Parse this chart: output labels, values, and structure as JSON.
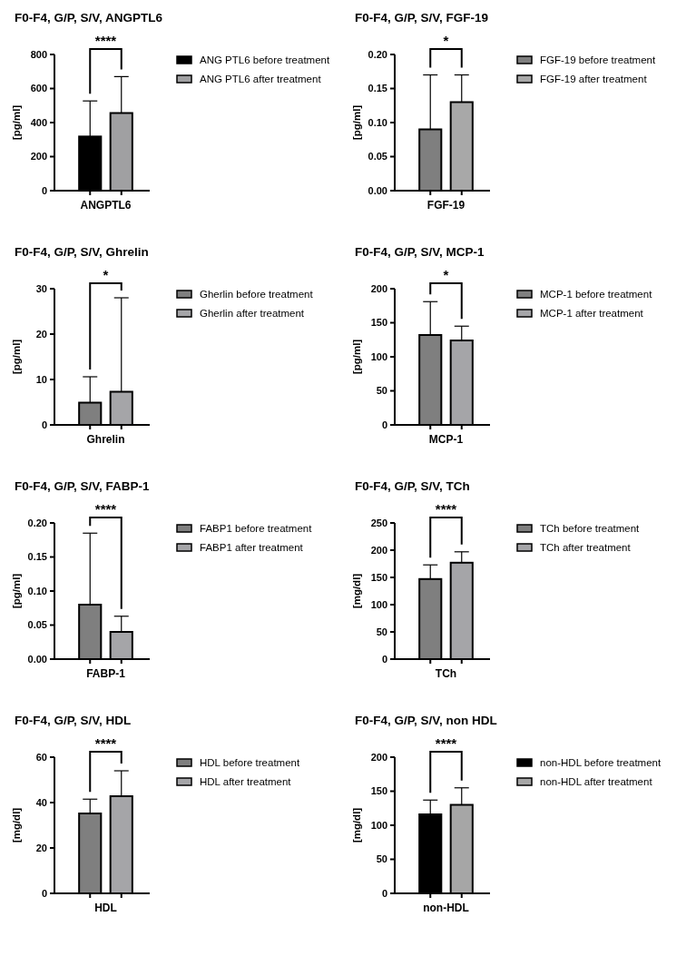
{
  "chart_data": [
    {
      "type": "bar",
      "title": "F0-F4, G/P, S/V,  ANGPTL6",
      "ylabel": "[pg/ml]",
      "categories": [
        "ANGPTL6"
      ],
      "ylim": [
        0,
        800
      ],
      "yticks": [
        0,
        200,
        400,
        600,
        800
      ],
      "legend": "right",
      "annotations": [
        "****"
      ],
      "series": [
        {
          "name": "ANG PTL6 before treatment",
          "color": "#000000",
          "values": [
            318
          ],
          "errors": [
            [
              318,
              527
            ]
          ]
        },
        {
          "name": "ANG PTL6 after treatment",
          "color": "#a0a0a2",
          "values": [
            456
          ],
          "errors": [
            [
              456,
              670
            ]
          ]
        }
      ]
    },
    {
      "type": "bar",
      "title": "F0-F4, G/P, S/V,  FGF-19",
      "ylabel": "[pg/ml]",
      "categories": [
        "FGF-19"
      ],
      "ylim": [
        0,
        0.2
      ],
      "yticks": [
        {
          "value": 0,
          "label": "0.00"
        },
        {
          "value": 0.05,
          "label": "0.05"
        },
        {
          "value": 0.1,
          "label": "0.10"
        },
        {
          "value": 0.15,
          "label": "0.15"
        },
        {
          "value": 0.2,
          "label": "0.20"
        }
      ],
      "legend": "right",
      "annotations": [
        "*"
      ],
      "series": [
        {
          "name": "FGF-19 before treatment",
          "color": "#7f7f7f",
          "values": [
            0.09
          ],
          "errors": [
            [
              0.09,
              0.17
            ]
          ]
        },
        {
          "name": "FGF-19 after treatment",
          "color": "#a8a8a8",
          "values": [
            0.13
          ],
          "errors": [
            [
              0.13,
              0.17
            ]
          ]
        }
      ]
    },
    {
      "type": "bar",
      "title": "F0-F4, G/P, S/V, Ghrelin",
      "ylabel": "[pg/ml]",
      "categories": [
        "Ghrelin"
      ],
      "ylim": [
        0,
        30
      ],
      "yticks": [
        0,
        10,
        20,
        30
      ],
      "legend": "right",
      "annotations": [
        "*"
      ],
      "series": [
        {
          "name": "Gherlin before treatment",
          "color": "#7f7f7f",
          "values": [
            4.9
          ],
          "errors": [
            [
              4.9,
              10.6
            ]
          ]
        },
        {
          "name": "Gherlin after treatment",
          "color": "#a5a5a8",
          "values": [
            7.3
          ],
          "errors": [
            [
              7.3,
              28
            ]
          ]
        }
      ]
    },
    {
      "type": "bar",
      "title": "F0-F4, G/P, S/V, MCP-1",
      "ylabel": "[pg/ml]",
      "categories": [
        "MCP-1"
      ],
      "ylim": [
        0,
        200
      ],
      "yticks": [
        0,
        50,
        100,
        150,
        200
      ],
      "legend": "right",
      "annotations": [
        "*"
      ],
      "series": [
        {
          "name": "MCP-1 before treatment",
          "color": "#7f7f7f",
          "values": [
            132
          ],
          "errors": [
            [
              132,
              181
            ]
          ]
        },
        {
          "name": "MCP-1 after treatment",
          "color": "#a5a5a8",
          "values": [
            124
          ],
          "errors": [
            [
              124,
              145
            ]
          ]
        }
      ]
    },
    {
      "type": "bar",
      "title": "F0-F4, G/P, S/V, FABP-1",
      "ylabel": "[pg/ml]",
      "categories": [
        "FABP-1"
      ],
      "ylim": [
        0,
        0.2
      ],
      "yticks": [
        {
          "value": 0,
          "label": "0.00"
        },
        {
          "value": 0.05,
          "label": "0.05"
        },
        {
          "value": 0.1,
          "label": "0.10"
        },
        {
          "value": 0.15,
          "label": "0.15"
        },
        {
          "value": 0.2,
          "label": "0.20"
        }
      ],
      "legend": "right",
      "annotations": [
        "****"
      ],
      "series": [
        {
          "name": "FABP1 before treatment",
          "color": "#7f7f7f",
          "values": [
            0.08
          ],
          "errors": [
            [
              0.08,
              0.185
            ]
          ]
        },
        {
          "name": "FABP1 after treatment",
          "color": "#a5a5a8",
          "values": [
            0.04
          ],
          "errors": [
            [
              0.04,
              0.063
            ]
          ]
        }
      ]
    },
    {
      "type": "bar",
      "title": "F0-F4, G/P, S/V, TCh",
      "ylabel": "[mg/dl]",
      "categories": [
        "TCh"
      ],
      "ylim": [
        0,
        250
      ],
      "yticks": [
        0,
        50,
        100,
        150,
        200,
        250
      ],
      "legend": "right",
      "annotations": [
        "****"
      ],
      "series": [
        {
          "name": "TCh before treatment",
          "color": "#7f7f7f",
          "values": [
            147
          ],
          "errors": [
            [
              147,
              173
            ]
          ]
        },
        {
          "name": "TCh after  treatment",
          "color": "#a5a5a8",
          "values": [
            177
          ],
          "errors": [
            [
              177,
              197
            ]
          ]
        }
      ]
    },
    {
      "type": "bar",
      "title": "F0-F4, G/P, S/V, HDL",
      "ylabel": "[mg/dl]",
      "categories": [
        "HDL"
      ],
      "ylim": [
        0,
        60
      ],
      "yticks": [
        0,
        20,
        40,
        60
      ],
      "legend": "right",
      "annotations": [
        "****"
      ],
      "series": [
        {
          "name": "HDL before treatment",
          "color": "#7f7f7f",
          "values": [
            35.2
          ],
          "errors": [
            [
              35.2,
              41.5
            ]
          ]
        },
        {
          "name": "HDL after treatment",
          "color": "#a5a5a8",
          "values": [
            42.8
          ],
          "errors": [
            [
              42.8,
              54
            ]
          ]
        }
      ]
    },
    {
      "type": "bar",
      "title": "F0-F4, G/P, S/V, non HDL",
      "ylabel": "[mg/dl]",
      "categories": [
        "non-HDL"
      ],
      "ylim": [
        0,
        200
      ],
      "yticks": [
        0,
        50,
        100,
        150,
        200
      ],
      "legend": "right",
      "annotations": [
        "****"
      ],
      "series": [
        {
          "name": "non-HDL before treatment",
          "color": "#000000",
          "values": [
            116
          ],
          "errors": [
            [
              116,
              137
            ]
          ]
        },
        {
          "name": "non-HDL after treatment",
          "color": "#a6a6a6",
          "values": [
            130
          ],
          "errors": [
            [
              130,
              155
            ]
          ]
        }
      ]
    }
  ]
}
